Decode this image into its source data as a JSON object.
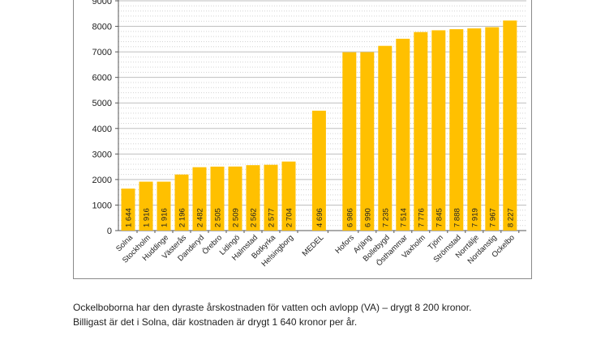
{
  "chart_data": {
    "type": "bar",
    "categories": [
      "Solna",
      "Stockholm",
      "Huddinge",
      "Västerås",
      "Danderyd",
      "Örebro",
      "Lidingö",
      "Halmstad",
      "Botkyrka",
      "Helsingborg",
      "MEDEL",
      "Hofors",
      "Arjäng",
      "Bollebygd",
      "Östhammar",
      "Vaxholm",
      "Tjörn",
      "Strömstad",
      "Norrtälje",
      "Nordanstig",
      "Ockelbo"
    ],
    "values": [
      1644,
      1916,
      1916,
      2196,
      2482,
      2505,
      2509,
      2562,
      2577,
      2704,
      4696,
      6986,
      6990,
      7235,
      7514,
      7776,
      7845,
      7888,
      7919,
      7967,
      8227
    ],
    "data_labels": [
      "1 644",
      "1 916",
      "1 916",
      "2 196",
      "2 482",
      "2 505",
      "2 509",
      "2 562",
      "2 577",
      "2 704",
      "4 696",
      "6 986",
      "6 990",
      "7 235",
      "7 514",
      "7 776",
      "7 845",
      "7 888",
      "7 919",
      "7 967",
      "8 227"
    ],
    "yticks": [
      "0",
      "1000",
      "2000",
      "3000",
      "4000",
      "5000",
      "6000",
      "7000",
      "8000",
      "9000"
    ],
    "ylim": [
      0,
      9000
    ],
    "grid": true,
    "bar_color": "#FFC000",
    "grid_color": "#BFBFBF",
    "title": "",
    "xlabel": "",
    "ylabel": ""
  },
  "captions": {
    "line1": "Ockelboborna har den dyraste årskostnaden för vatten och avlopp (VA) – drygt 8 200 kronor.",
    "line2": "Billigast är det i Solna, där kostnaden är drygt 1 640 kronor per år."
  }
}
